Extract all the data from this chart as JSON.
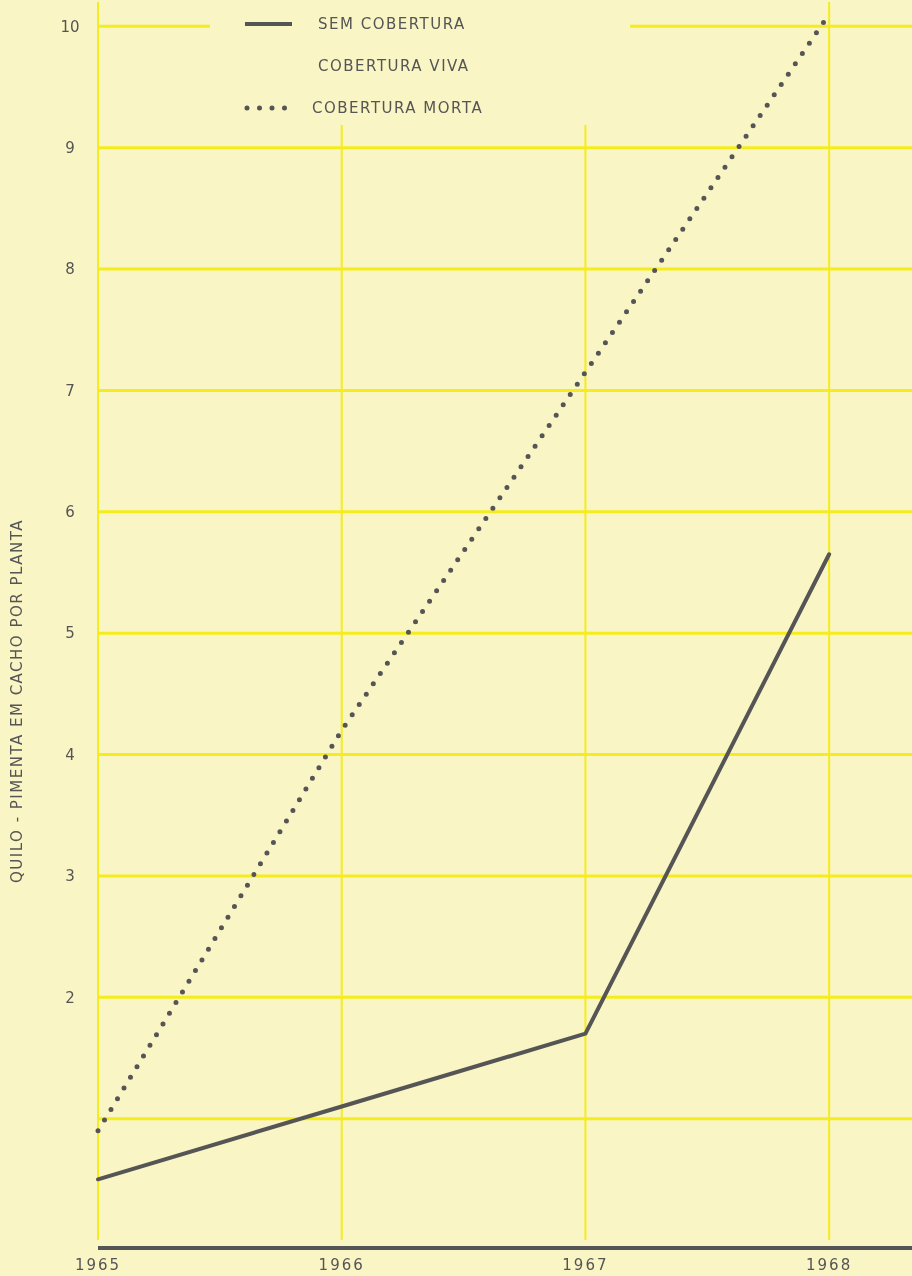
{
  "chart_data": {
    "type": "line",
    "ylabel": "QUILO - PIMENTA EM CACHO POR PLANTA",
    "x": [
      1965,
      1966,
      1967,
      1968
    ],
    "xlim": [
      1965,
      1968.34
    ],
    "xticks": [
      1965,
      1966,
      1967,
      1968
    ],
    "ylim": [
      0,
      10.2
    ],
    "yticks": [
      {
        "value": 1,
        "label": null
      },
      2,
      3,
      4,
      5,
      6,
      7,
      8,
      9,
      10
    ],
    "grid": true,
    "legend": "top",
    "marker": "none",
    "series": [
      {
        "name": "SEM COBERTURA",
        "color": "#555555",
        "line_style": "solid",
        "values": [
          0.5,
          1.1,
          1.7,
          5.65
        ]
      },
      {
        "name": "COBERTURA MORTA",
        "color": "#555555",
        "line_style": "dotted",
        "values": [
          0.9,
          4.2,
          7.15,
          10.1
        ]
      }
    ],
    "annotations": [
      "COBERTURA VIVA"
    ]
  }
}
